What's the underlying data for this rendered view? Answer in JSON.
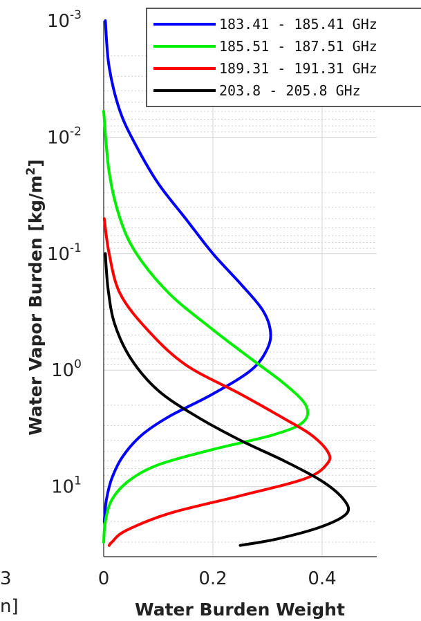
{
  "chart_data": {
    "type": "line",
    "xlabel": "Water Burden Weight",
    "ylabel": "Water Vapor Burden [kg/m",
    "ylabel_sup": "2",
    "ylabel_close": "]",
    "xlim": [
      0,
      0.5
    ],
    "ylim": [
      0.001,
      40
    ],
    "y_scale": "log",
    "y_reversed": true,
    "grid": true,
    "legend_position": "top-right",
    "x_ticks": [
      {
        "value": 0,
        "label": "0"
      },
      {
        "value": 0.2,
        "label": "0.2"
      },
      {
        "value": 0.4,
        "label": "0.4"
      }
    ],
    "y_ticks": [
      {
        "value": 0.001,
        "base": "10",
        "exp": "-3"
      },
      {
        "value": 0.01,
        "base": "10",
        "exp": "-2"
      },
      {
        "value": 0.1,
        "base": "10",
        "exp": "-1"
      },
      {
        "value": 1,
        "base": "10",
        "exp": "0"
      },
      {
        "value": 10,
        "base": "10",
        "exp": "1"
      }
    ],
    "series": [
      {
        "name": "183.41 - 185.41 GHz",
        "color": "#0000ff",
        "points": [
          [
            0.003,
            0.001
          ],
          [
            0.01,
            0.0025
          ],
          [
            0.03,
            0.006
          ],
          [
            0.06,
            0.012
          ],
          [
            0.1,
            0.025
          ],
          [
            0.15,
            0.05
          ],
          [
            0.2,
            0.1
          ],
          [
            0.25,
            0.18
          ],
          [
            0.29,
            0.3
          ],
          [
            0.305,
            0.45
          ],
          [
            0.3,
            0.65
          ],
          [
            0.27,
            1.0
          ],
          [
            0.2,
            1.6
          ],
          [
            0.12,
            2.5
          ],
          [
            0.07,
            3.6
          ],
          [
            0.035,
            5.5
          ],
          [
            0.015,
            8.5
          ],
          [
            0.005,
            13
          ],
          [
            0.001,
            20
          ]
        ]
      },
      {
        "name": "185.51 - 187.51 GHz",
        "color": "#00ee00",
        "points": [
          [
            0.0,
            0.006
          ],
          [
            0.01,
            0.02
          ],
          [
            0.03,
            0.05
          ],
          [
            0.06,
            0.1
          ],
          [
            0.12,
            0.22
          ],
          [
            0.2,
            0.45
          ],
          [
            0.27,
            0.8
          ],
          [
            0.33,
            1.3
          ],
          [
            0.37,
            2.0
          ],
          [
            0.365,
            2.8
          ],
          [
            0.31,
            3.6
          ],
          [
            0.2,
            4.8
          ],
          [
            0.1,
            6.5
          ],
          [
            0.045,
            9.0
          ],
          [
            0.015,
            13
          ],
          [
            0.003,
            20
          ],
          [
            0.0,
            30
          ]
        ]
      },
      {
        "name": "189.31 - 191.31 GHz",
        "color": "#ff0000",
        "points": [
          [
            0.001,
            0.05
          ],
          [
            0.01,
            0.1
          ],
          [
            0.03,
            0.22
          ],
          [
            0.08,
            0.45
          ],
          [
            0.15,
            0.9
          ],
          [
            0.25,
            1.6
          ],
          [
            0.33,
            2.6
          ],
          [
            0.38,
            3.6
          ],
          [
            0.41,
            5.0
          ],
          [
            0.41,
            6.3
          ],
          [
            0.37,
            8.5
          ],
          [
            0.25,
            12
          ],
          [
            0.12,
            17
          ],
          [
            0.04,
            24
          ],
          [
            0.015,
            30
          ],
          [
            0.01,
            32
          ]
        ]
      },
      {
        "name": "203.8 - 205.8 GHz",
        "color": "#000000",
        "points": [
          [
            0.003,
            0.1
          ],
          [
            0.008,
            0.2
          ],
          [
            0.02,
            0.4
          ],
          [
            0.05,
            0.8
          ],
          [
            0.1,
            1.5
          ],
          [
            0.17,
            2.5
          ],
          [
            0.25,
            4.0
          ],
          [
            0.33,
            6.0
          ],
          [
            0.4,
            9.0
          ],
          [
            0.44,
            13
          ],
          [
            0.445,
            17
          ],
          [
            0.4,
            22
          ],
          [
            0.32,
            28
          ],
          [
            0.25,
            32
          ]
        ]
      }
    ]
  },
  "fragments": {
    "left_digit": "3",
    "left_bracket": "n]"
  }
}
